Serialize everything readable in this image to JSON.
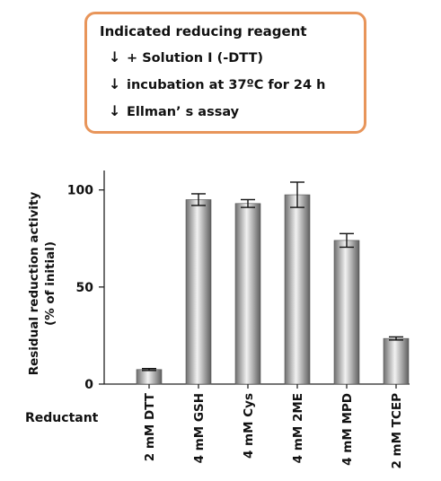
{
  "protocol": {
    "title": "Indicated reducing reagent",
    "steps": [
      {
        "icon": "down-arrow-icon",
        "text": "+ Solution I (-DTT)"
      },
      {
        "icon": "down-arrow-icon",
        "text": "incubation at 37ºC for 24 h"
      },
      {
        "icon": "down-arrow-icon",
        "text": "Ellman’ s assay"
      }
    ],
    "border_color": "#e8955a"
  },
  "chart_data": {
    "type": "bar",
    "categories": [
      "2 mM DTT",
      "4 mM GSH",
      "4 mM Cys",
      "4 mM 2ME",
      "4 mM MPD",
      "2 mM TCEP"
    ],
    "values": [
      7.5,
      95,
      93,
      97.5,
      74,
      23.5
    ],
    "errors": [
      0.5,
      3,
      2,
      6.5,
      3.5,
      0.8
    ],
    "ylabel_line1": "Residual reduction activity",
    "ylabel_line2": "(% of initial)",
    "xlabel": "Reductant",
    "ylim": [
      0,
      110
    ],
    "yticks": [
      0,
      50,
      100
    ],
    "grid": false,
    "bar_color": "#a8a8a8"
  }
}
